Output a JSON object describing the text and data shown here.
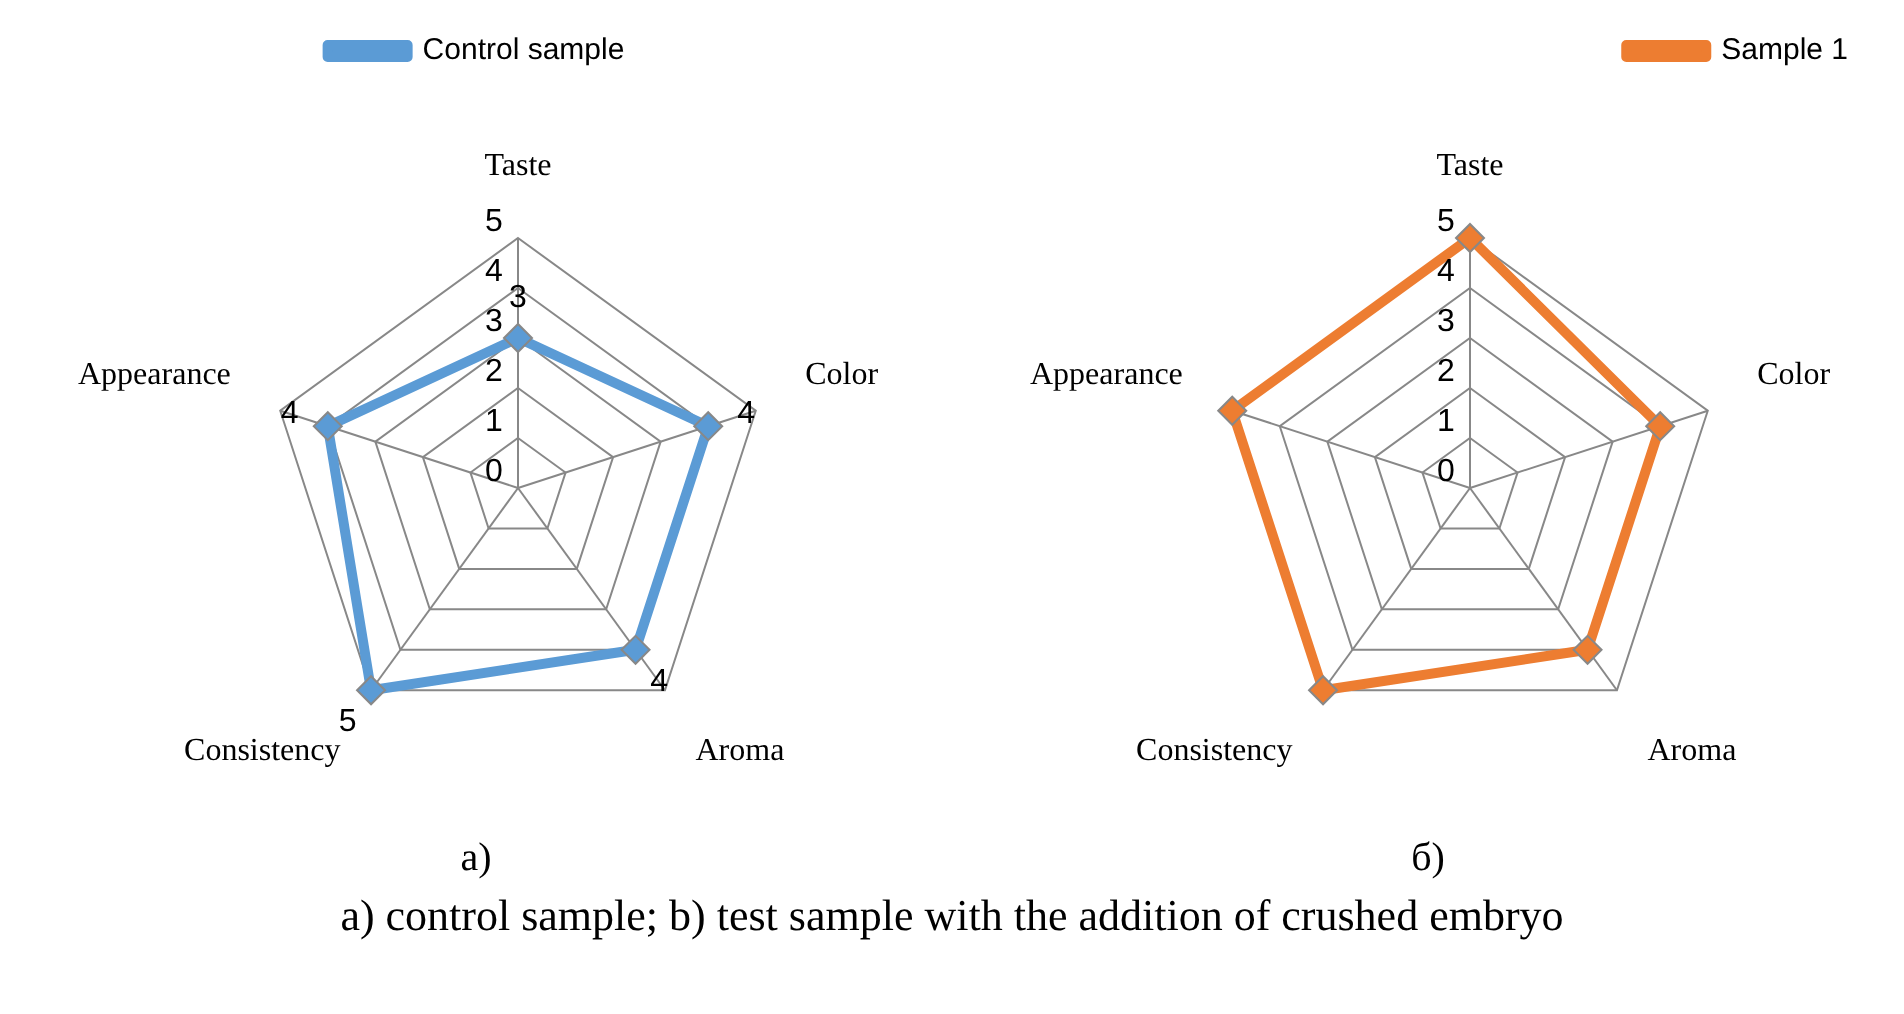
{
  "chart_data": [
    {
      "type": "radar",
      "categories": [
        "Taste",
        "Color",
        "Aroma",
        "Consistency",
        "Appearance"
      ],
      "series": [
        {
          "name": "Control sample",
          "color": "#5b9bd5",
          "values": [
            3,
            4,
            4,
            5,
            4
          ]
        }
      ],
      "ylim": [
        0,
        5
      ],
      "yticks": [
        0,
        1,
        2,
        3,
        4,
        5
      ],
      "grid": true,
      "legend": "top",
      "marker": "diamond",
      "line_style": "solid",
      "data_labels": true,
      "annotations": [
        "a)"
      ]
    },
    {
      "type": "radar",
      "categories": [
        "Taste",
        "Color",
        "Aroma",
        "Consistency",
        "Appearance"
      ],
      "series": [
        {
          "name": "Sample 1",
          "color": "#ed7d31",
          "values": [
            5,
            4,
            4,
            5,
            5
          ]
        }
      ],
      "ylim": [
        0,
        5
      ],
      "yticks": [
        0,
        1,
        2,
        3,
        4,
        5
      ],
      "grid": true,
      "legend": "top right",
      "marker": "diamond",
      "line_style": "solid",
      "annotations": [
        "б)"
      ]
    },
    {
      "type": "other",
      "annotations": [
        "a) control sample; b) test sample with the addition of crushed embryo"
      ]
    }
  ]
}
